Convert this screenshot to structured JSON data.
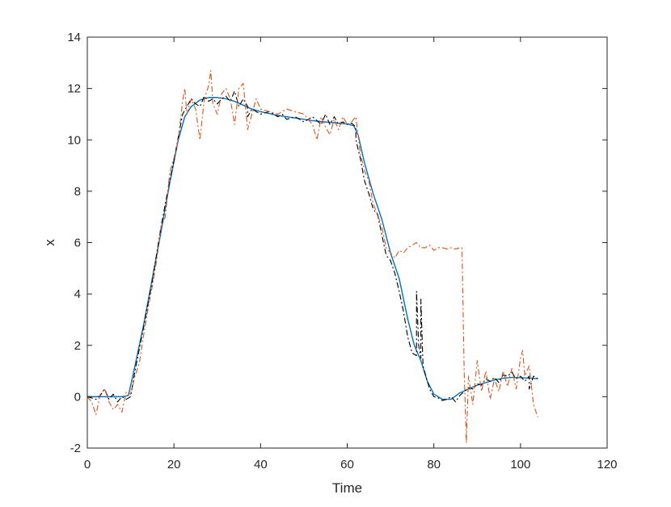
{
  "chart_data": {
    "type": "line",
    "title": "",
    "xlabel": "Time",
    "ylabel": "x",
    "xlim": [
      0,
      120
    ],
    "ylim": [
      -2,
      14
    ],
    "xticks": [
      0,
      20,
      40,
      60,
      80,
      100,
      120
    ],
    "yticks": [
      -2,
      0,
      2,
      4,
      6,
      8,
      10,
      12,
      14
    ],
    "xtick_labels": [
      "0",
      "20",
      "40",
      "60",
      "80",
      "100",
      "120"
    ],
    "ytick_labels": [
      "-2",
      "0",
      "2",
      "4",
      "6",
      "8",
      "10",
      "12",
      "14"
    ],
    "grid": false,
    "box": true,
    "legend": "none",
    "series": [
      {
        "color": "#0072BD",
        "style": "solid",
        "x": [
          0,
          2,
          4,
          6,
          8,
          9.5,
          11,
          13,
          15,
          17,
          19,
          21,
          22.5,
          24,
          26,
          28,
          30,
          32,
          34,
          36,
          38,
          40,
          44,
          48,
          52,
          56,
          60,
          61.5,
          62.5,
          64,
          66,
          68,
          70,
          72,
          74,
          75.5,
          77,
          78.5,
          80,
          82,
          84,
          86,
          88,
          90,
          92,
          94,
          96,
          98,
          100,
          102,
          104
        ],
        "y": [
          0,
          0,
          0,
          0,
          0,
          0.05,
          1.2,
          2.8,
          4.6,
          6.4,
          8.3,
          10.0,
          10.9,
          11.3,
          11.55,
          11.65,
          11.65,
          11.6,
          11.5,
          11.35,
          11.2,
          11.1,
          10.95,
          10.85,
          10.75,
          10.68,
          10.62,
          10.55,
          10.2,
          9.1,
          7.9,
          6.9,
          5.6,
          4.6,
          3.0,
          2.0,
          1.4,
          0.6,
          0.1,
          -0.1,
          -0.1,
          0.15,
          0.3,
          0.45,
          0.55,
          0.65,
          0.72,
          0.75,
          0.74,
          0.72,
          0.7
        ]
      },
      {
        "color": "#000000",
        "style": "dashdot",
        "x": [
          0,
          2,
          3,
          4,
          5,
          6,
          7,
          8,
          9,
          10,
          11,
          13,
          15,
          17,
          19,
          20,
          21,
          22,
          23,
          24,
          25,
          26,
          27,
          28,
          29,
          30,
          31,
          32,
          33,
          34,
          35,
          36,
          37,
          37,
          38,
          40,
          42,
          44,
          45,
          46,
          48,
          50,
          52,
          54,
          55,
          56,
          57,
          58,
          59,
          60,
          61,
          62,
          62,
          63,
          64,
          65,
          66,
          67,
          68,
          69,
          70,
          71,
          72,
          73,
          74,
          75,
          76,
          76,
          76.5,
          77,
          77,
          77.5,
          78,
          79,
          80,
          81,
          82,
          83,
          84,
          85,
          86,
          87,
          88,
          89,
          90,
          91,
          92,
          93,
          94,
          95,
          96,
          97,
          98,
          99,
          100,
          101,
          102,
          102,
          103,
          104
        ],
        "y": [
          0,
          -0.1,
          0.05,
          0.3,
          -0.1,
          0.1,
          -0.2,
          0,
          -0.1,
          0,
          1.0,
          2.7,
          4.5,
          6.6,
          8.4,
          9.2,
          10.1,
          11.0,
          11.3,
          11.6,
          11.4,
          11.3,
          11.7,
          11.5,
          11.6,
          11.4,
          11.6,
          11.7,
          11.5,
          11.9,
          11.3,
          11.6,
          11.3,
          10.9,
          11.2,
          11.0,
          11.1,
          10.9,
          11.0,
          10.8,
          10.9,
          10.7,
          10.9,
          10.6,
          11.0,
          10.6,
          10.9,
          10.6,
          10.7,
          10.6,
          10.65,
          10.5,
          10.0,
          9.3,
          8.4,
          7.9,
          7.3,
          7.1,
          6.3,
          5.5,
          5.3,
          4.8,
          4.1,
          3.3,
          2.3,
          1.7,
          1.6,
          4.1,
          2.0,
          1.5,
          3.8,
          1.2,
          0.9,
          0.3,
          0.0,
          -0.05,
          -0.15,
          -0.1,
          0.0,
          -0.2,
          0.05,
          0.2,
          0.35,
          0.3,
          0.5,
          0.45,
          0.7,
          0.6,
          0.75,
          0.55,
          0.85,
          0.8,
          0.95,
          0.7,
          0.8,
          0.6,
          0.8,
          0.3,
          0.8,
          0.7
        ]
      },
      {
        "color": "#D95319",
        "style": "dashdot",
        "x": [
          0,
          1,
          2,
          3,
          4,
          5,
          6,
          7,
          8,
          9,
          10,
          11,
          12,
          13,
          14,
          15,
          16,
          17,
          18,
          19,
          20,
          21,
          22,
          22.5,
          23,
          24,
          25,
          26,
          27,
          28,
          28.5,
          29,
          30,
          31,
          32,
          33,
          34,
          35,
          36,
          37,
          38,
          39,
          40,
          42,
          44,
          46,
          48,
          50,
          52,
          53,
          54,
          55,
          56,
          57,
          58,
          59,
          60,
          61,
          62,
          63,
          64,
          65,
          66,
          67,
          68,
          69,
          70,
          71,
          72,
          73,
          74,
          75,
          76,
          77,
          78,
          79,
          80,
          81,
          82,
          83,
          84,
          85,
          86,
          86.5,
          87,
          87.5,
          88,
          89,
          90,
          91,
          92,
          93,
          94,
          95,
          96,
          97,
          98,
          99,
          100,
          100.5,
          101,
          102,
          103,
          104
        ],
        "y": [
          0,
          -0.2,
          -0.7,
          0.1,
          0.3,
          -0.2,
          -0.5,
          -0.3,
          -0.6,
          0.2,
          0.1,
          0.8,
          1.3,
          2.4,
          3.4,
          4.3,
          5.3,
          6.6,
          7.0,
          8.7,
          9.3,
          10.0,
          11.5,
          12.0,
          11.0,
          11.6,
          11.2,
          10.0,
          11.6,
          12.1,
          12.7,
          11.4,
          11.0,
          11.8,
          12.0,
          11.6,
          10.6,
          12.0,
          12.2,
          10.4,
          11.0,
          11.6,
          11.2,
          11.1,
          11.0,
          11.2,
          11.1,
          11.0,
          10.6,
          10.0,
          10.9,
          10.5,
          10.2,
          10.8,
          10.4,
          10.9,
          10.6,
          10.7,
          10.9,
          9.5,
          8.8,
          8.4,
          7.5,
          7.1,
          6.6,
          5.8,
          5.6,
          5.4,
          5.7,
          5.6,
          5.8,
          5.9,
          6.0,
          5.8,
          5.8,
          5.9,
          5.7,
          5.8,
          5.8,
          5.75,
          5.8,
          5.75,
          5.8,
          5.8,
          1.0,
          -1.8,
          0.8,
          -0.3,
          1.4,
          0.2,
          1.0,
          -0.1,
          0.7,
          0.2,
          1.0,
          0.4,
          1.1,
          0.3,
          1.5,
          1.8,
          0.8,
          1.2,
          -0.3,
          -0.8
        ]
      }
    ]
  }
}
